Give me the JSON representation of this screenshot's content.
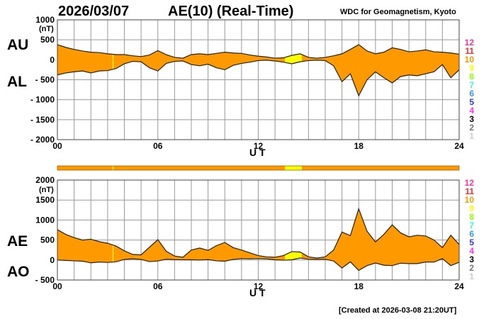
{
  "header": {
    "date": "2026/03/07",
    "title": "AE(10) (Real-Time)",
    "source": "WDC for Geomagnetism, Kyoto",
    "created": "[Created at 2026-03-08 21:20UT]"
  },
  "colors": {
    "fill_default": "#ff9900",
    "fill_low": "#ffff00",
    "outline": "#222222",
    "station_bar": "#ff9900"
  },
  "station_legend": [
    {
      "label": "12",
      "color": "#ff3399"
    },
    {
      "label": "11",
      "color": "#ff2a2a"
    },
    {
      "label": "10",
      "color": "#ff9900"
    },
    {
      "label": "9",
      "color": "#ffff00"
    },
    {
      "label": "8",
      "color": "#99ff00"
    },
    {
      "label": "7",
      "color": "#33ffcc"
    },
    {
      "label": "6",
      "color": "#3399ff"
    },
    {
      "label": "5",
      "color": "#3333ff"
    },
    {
      "label": "4",
      "color": "#ff33ff"
    },
    {
      "label": "3",
      "color": "#000000"
    },
    {
      "label": "2",
      "color": "#777777"
    },
    {
      "label": "1",
      "color": "#cccccc"
    }
  ],
  "chart_data": [
    {
      "type": "area",
      "title": "AU / AL",
      "series_labels": [
        "AU",
        "AL"
      ],
      "unit": "(nT)",
      "xlabel": "U T",
      "xlim": [
        0,
        24
      ],
      "xticks": [
        "00",
        "06",
        "12",
        "18",
        "24"
      ],
      "ylim": [
        -2000,
        1000
      ],
      "yticks": [
        "1000",
        "500",
        "0",
        "- 500",
        "- 1000",
        "- 1500",
        "- 2000"
      ],
      "grid": true,
      "x": [
        0,
        0.5,
        1,
        1.5,
        2,
        2.5,
        3,
        3.5,
        4,
        4.5,
        5,
        5.5,
        6,
        6.5,
        7,
        7.5,
        8,
        8.5,
        9,
        9.5,
        10,
        10.5,
        11,
        11.5,
        12,
        12.5,
        13,
        13.5,
        14,
        14.5,
        15,
        15.5,
        16,
        16.5,
        17,
        17.5,
        18,
        18.5,
        19,
        19.5,
        20,
        20.5,
        21,
        21.5,
        22,
        22.5,
        23,
        23.5,
        24
      ],
      "AU": [
        380,
        310,
        260,
        220,
        190,
        180,
        150,
        130,
        130,
        100,
        80,
        120,
        230,
        130,
        60,
        40,
        130,
        150,
        130,
        160,
        190,
        170,
        160,
        120,
        90,
        70,
        40,
        50,
        110,
        150,
        60,
        40,
        60,
        100,
        150,
        260,
        380,
        220,
        150,
        190,
        300,
        260,
        200,
        220,
        250,
        200,
        190,
        170,
        140
      ],
      "AL": [
        -380,
        -330,
        -300,
        -280,
        -330,
        -280,
        -270,
        -220,
        -100,
        -40,
        -50,
        -200,
        -280,
        -90,
        -40,
        -30,
        -120,
        -150,
        -110,
        -200,
        -250,
        -140,
        -90,
        -60,
        -20,
        -10,
        -30,
        -60,
        -100,
        -50,
        -20,
        -10,
        -20,
        -150,
        -550,
        -350,
        -900,
        -500,
        -300,
        -450,
        -580,
        -420,
        -380,
        -400,
        -350,
        -300,
        -120,
        -450,
        -250
      ]
    },
    {
      "type": "area",
      "title": "AE / AO",
      "series_labels": [
        "AE",
        "AO"
      ],
      "unit": "(nT)",
      "xlabel": "U T",
      "xlim": [
        0,
        24
      ],
      "xticks": [
        "00",
        "06",
        "12",
        "18",
        "24"
      ],
      "ylim": [
        -500,
        2000
      ],
      "yticks": [
        "2000",
        "1500",
        "1000",
        "500",
        "0",
        "- 500"
      ],
      "grid": true,
      "derived": "AE = AU - AL, AO = (AU + AL) / 2"
    }
  ],
  "station_count_segments": [
    {
      "start": 0,
      "end": 3.3,
      "count": 10
    },
    {
      "start": 3.3,
      "end": 3.35,
      "count": 9
    },
    {
      "start": 3.35,
      "end": 13.6,
      "count": 10
    },
    {
      "start": 13.6,
      "end": 14.6,
      "count": 9
    },
    {
      "start": 14.6,
      "end": 24,
      "count": 10
    }
  ]
}
